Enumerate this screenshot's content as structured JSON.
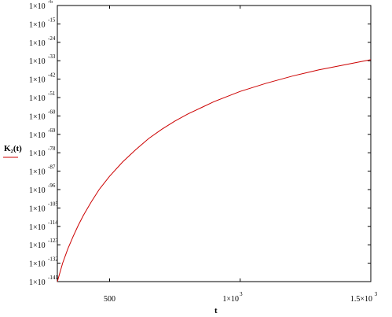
{
  "chart_data": {
    "type": "line",
    "title": "",
    "xlabel": "t",
    "ylabel": "K₂(t)",
    "x_scale": "linear",
    "y_scale": "log",
    "xlim": [
      300,
      1500
    ],
    "ylim": [
      "1e-141",
      "1e-6"
    ],
    "x_ticks": [
      {
        "value": 500,
        "base": "500",
        "exp": ""
      },
      {
        "value": 1000,
        "base": "1×10",
        "exp": "3"
      },
      {
        "value": 1500,
        "base": "1.5×10",
        "exp": "3"
      }
    ],
    "y_ticks": [
      {
        "base": "1×10",
        "exp": "-6"
      },
      {
        "base": "1×10",
        "exp": "-15"
      },
      {
        "base": "1×10",
        "exp": "-24"
      },
      {
        "base": "1×10",
        "exp": "-33"
      },
      {
        "base": "1×10",
        "exp": "-42"
      },
      {
        "base": "1×10",
        "exp": "-51"
      },
      {
        "base": "1×10",
        "exp": "-60"
      },
      {
        "base": "1×10",
        "exp": "-69"
      },
      {
        "base": "1×10",
        "exp": "-78"
      },
      {
        "base": "1×10",
        "exp": "-87"
      },
      {
        "base": "1×10",
        "exp": "-96"
      },
      {
        "base": "1×10",
        "exp": "-105"
      },
      {
        "base": "1×10",
        "exp": "-114"
      },
      {
        "base": "1×10",
        "exp": "-123"
      },
      {
        "base": "1×10",
        "exp": "-132"
      },
      {
        "base": "1×10",
        "exp": "-141"
      }
    ],
    "y_tick_log10": [
      -6,
      -15,
      -24,
      -33,
      -42,
      -51,
      -60,
      -69,
      -78,
      -87,
      -96,
      -105,
      -114,
      -123,
      -132,
      -141
    ],
    "grid": false,
    "series": [
      {
        "color": "#cc0000",
        "x": [
          300,
          320,
          340,
          360,
          380,
          400,
          430,
          460,
          500,
          550,
          600,
          650,
          700,
          750,
          800,
          850,
          900,
          950,
          1000,
          1100,
          1200,
          1300,
          1400,
          1500
        ],
        "y_log10": [
          -141,
          -132,
          -125,
          -119,
          -113.5,
          -108.5,
          -102,
          -96,
          -89.5,
          -82.5,
          -76.5,
          -71,
          -66.5,
          -62.5,
          -59,
          -56,
          -53,
          -50.5,
          -48,
          -44,
          -40.5,
          -37.5,
          -35,
          -32.5
        ]
      }
    ]
  }
}
